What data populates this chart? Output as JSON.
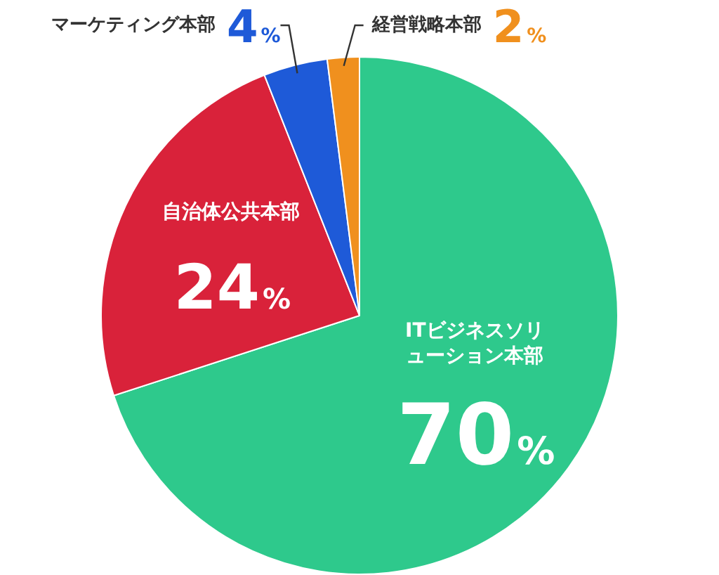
{
  "chart_data": {
    "type": "pie",
    "categories": [
      "ITビジネスソリューション本部",
      "自治体公共本部",
      "マーケティング本部",
      "経営戦略本部"
    ],
    "values": [
      70,
      24,
      4,
      2
    ],
    "colors": [
      "#2ec98c",
      "#d9223a",
      "#1e5ad8",
      "#f0901e"
    ],
    "value_labels": [
      "70%",
      "24%",
      "4%",
      "2%"
    ],
    "legend": false
  }
}
